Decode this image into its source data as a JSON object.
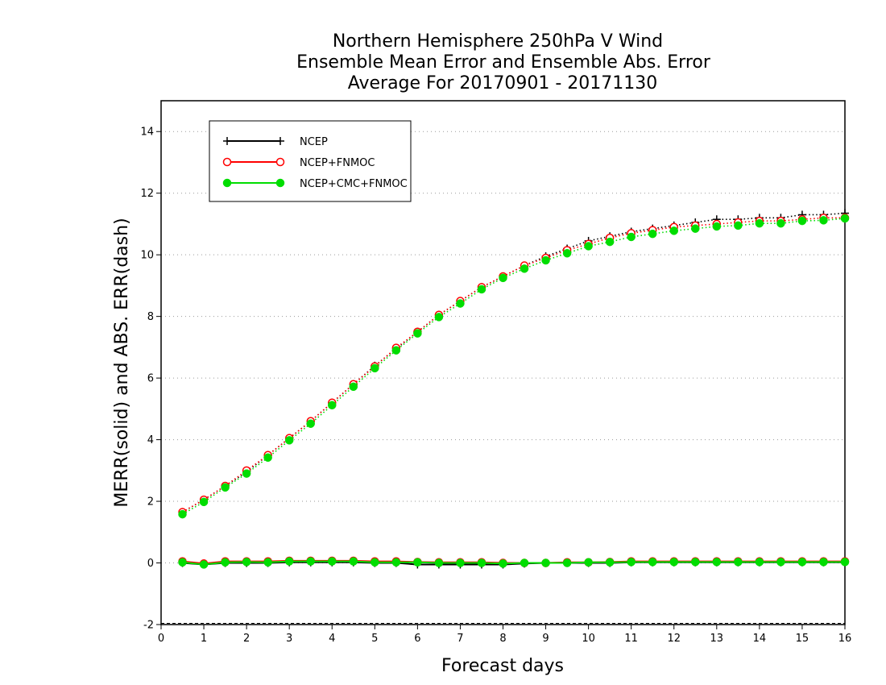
{
  "chart_data": {
    "type": "line",
    "title": [
      "Northern Hemisphere 250hPa V Wind",
      "Ensemble Mean Error and Ensemble Abs. Error",
      "Average For 20170901 - 20171130"
    ],
    "xlabel": "Forecast days",
    "ylabel": "MERR(solid) and ABS. ERR(dash)",
    "xlim": [
      0,
      16
    ],
    "ylim": [
      -2,
      15
    ],
    "xticks": [
      0,
      1,
      2,
      3,
      4,
      5,
      6,
      7,
      8,
      9,
      10,
      11,
      12,
      13,
      14,
      15,
      16
    ],
    "yticks": [
      -2,
      0,
      2,
      4,
      6,
      8,
      10,
      12,
      14
    ],
    "grid": "horizontal dotted",
    "legend_position": "top-left",
    "x": [
      0.5,
      1,
      1.5,
      2,
      2.5,
      3,
      3.5,
      4,
      4.5,
      5,
      5.5,
      6,
      6.5,
      7,
      7.5,
      8,
      8.5,
      9,
      9.5,
      10,
      10.5,
      11,
      11.5,
      12,
      12.5,
      13,
      13.5,
      14,
      14.5,
      15,
      15.5,
      16
    ],
    "series": [
      {
        "name": "NCEP",
        "color": "#000000",
        "marker": "plus",
        "abs_err": [
          1.65,
          2.05,
          2.5,
          2.95,
          3.5,
          4.05,
          4.6,
          5.2,
          5.8,
          6.4,
          6.95,
          7.5,
          8.05,
          8.5,
          8.95,
          9.3,
          9.65,
          9.95,
          10.2,
          10.45,
          10.6,
          10.75,
          10.85,
          10.95,
          11.05,
          11.15,
          11.15,
          11.2,
          11.2,
          11.3,
          11.3,
          11.35
        ],
        "mean_err": [
          0.0,
          -0.05,
          0.0,
          0.0,
          0.0,
          0.02,
          0.02,
          0.02,
          0.02,
          0.0,
          0.0,
          -0.05,
          -0.05,
          -0.05,
          -0.05,
          -0.05,
          -0.02,
          0.0,
          0.0,
          0.0,
          0.0,
          0.02,
          0.02,
          0.02,
          0.02,
          0.02,
          0.02,
          0.02,
          0.02,
          0.02,
          0.02,
          0.02
        ]
      },
      {
        "name": "NCEP+FNMOC",
        "color": "#ff0000",
        "marker": "open-circle",
        "abs_err": [
          1.65,
          2.05,
          2.5,
          3.0,
          3.5,
          4.05,
          4.6,
          5.2,
          5.8,
          6.38,
          6.98,
          7.5,
          8.05,
          8.5,
          8.95,
          9.3,
          9.65,
          9.9,
          10.15,
          10.35,
          10.55,
          10.7,
          10.8,
          10.9,
          10.95,
          11.0,
          11.05,
          11.1,
          11.1,
          11.15,
          11.2,
          11.2
        ],
        "mean_err": [
          0.05,
          -0.02,
          0.05,
          0.05,
          0.05,
          0.07,
          0.07,
          0.07,
          0.07,
          0.05,
          0.05,
          0.03,
          0.02,
          0.02,
          0.02,
          0.0,
          0.0,
          0.0,
          0.02,
          0.02,
          0.03,
          0.05,
          0.05,
          0.05,
          0.05,
          0.05,
          0.05,
          0.05,
          0.05,
          0.05,
          0.05,
          0.05
        ]
      },
      {
        "name": "NCEP+CMC+FNMOC",
        "color": "#00dd00",
        "marker": "filled-circle",
        "abs_err": [
          1.58,
          1.98,
          2.45,
          2.9,
          3.42,
          3.98,
          4.52,
          5.12,
          5.72,
          6.32,
          6.9,
          7.45,
          7.98,
          8.42,
          8.88,
          9.25,
          9.55,
          9.82,
          10.05,
          10.28,
          10.42,
          10.58,
          10.68,
          10.78,
          10.85,
          10.92,
          10.95,
          11.02,
          11.02,
          11.1,
          11.12,
          11.18
        ],
        "mean_err": [
          0.02,
          -0.05,
          0.02,
          0.03,
          0.02,
          0.05,
          0.05,
          0.05,
          0.05,
          0.02,
          0.02,
          0.02,
          0.0,
          0.0,
          0.0,
          -0.02,
          0.0,
          0.0,
          0.0,
          0.02,
          0.02,
          0.03,
          0.03,
          0.03,
          0.03,
          0.03,
          0.03,
          0.03,
          0.03,
          0.03,
          0.03,
          0.03
        ]
      }
    ]
  }
}
